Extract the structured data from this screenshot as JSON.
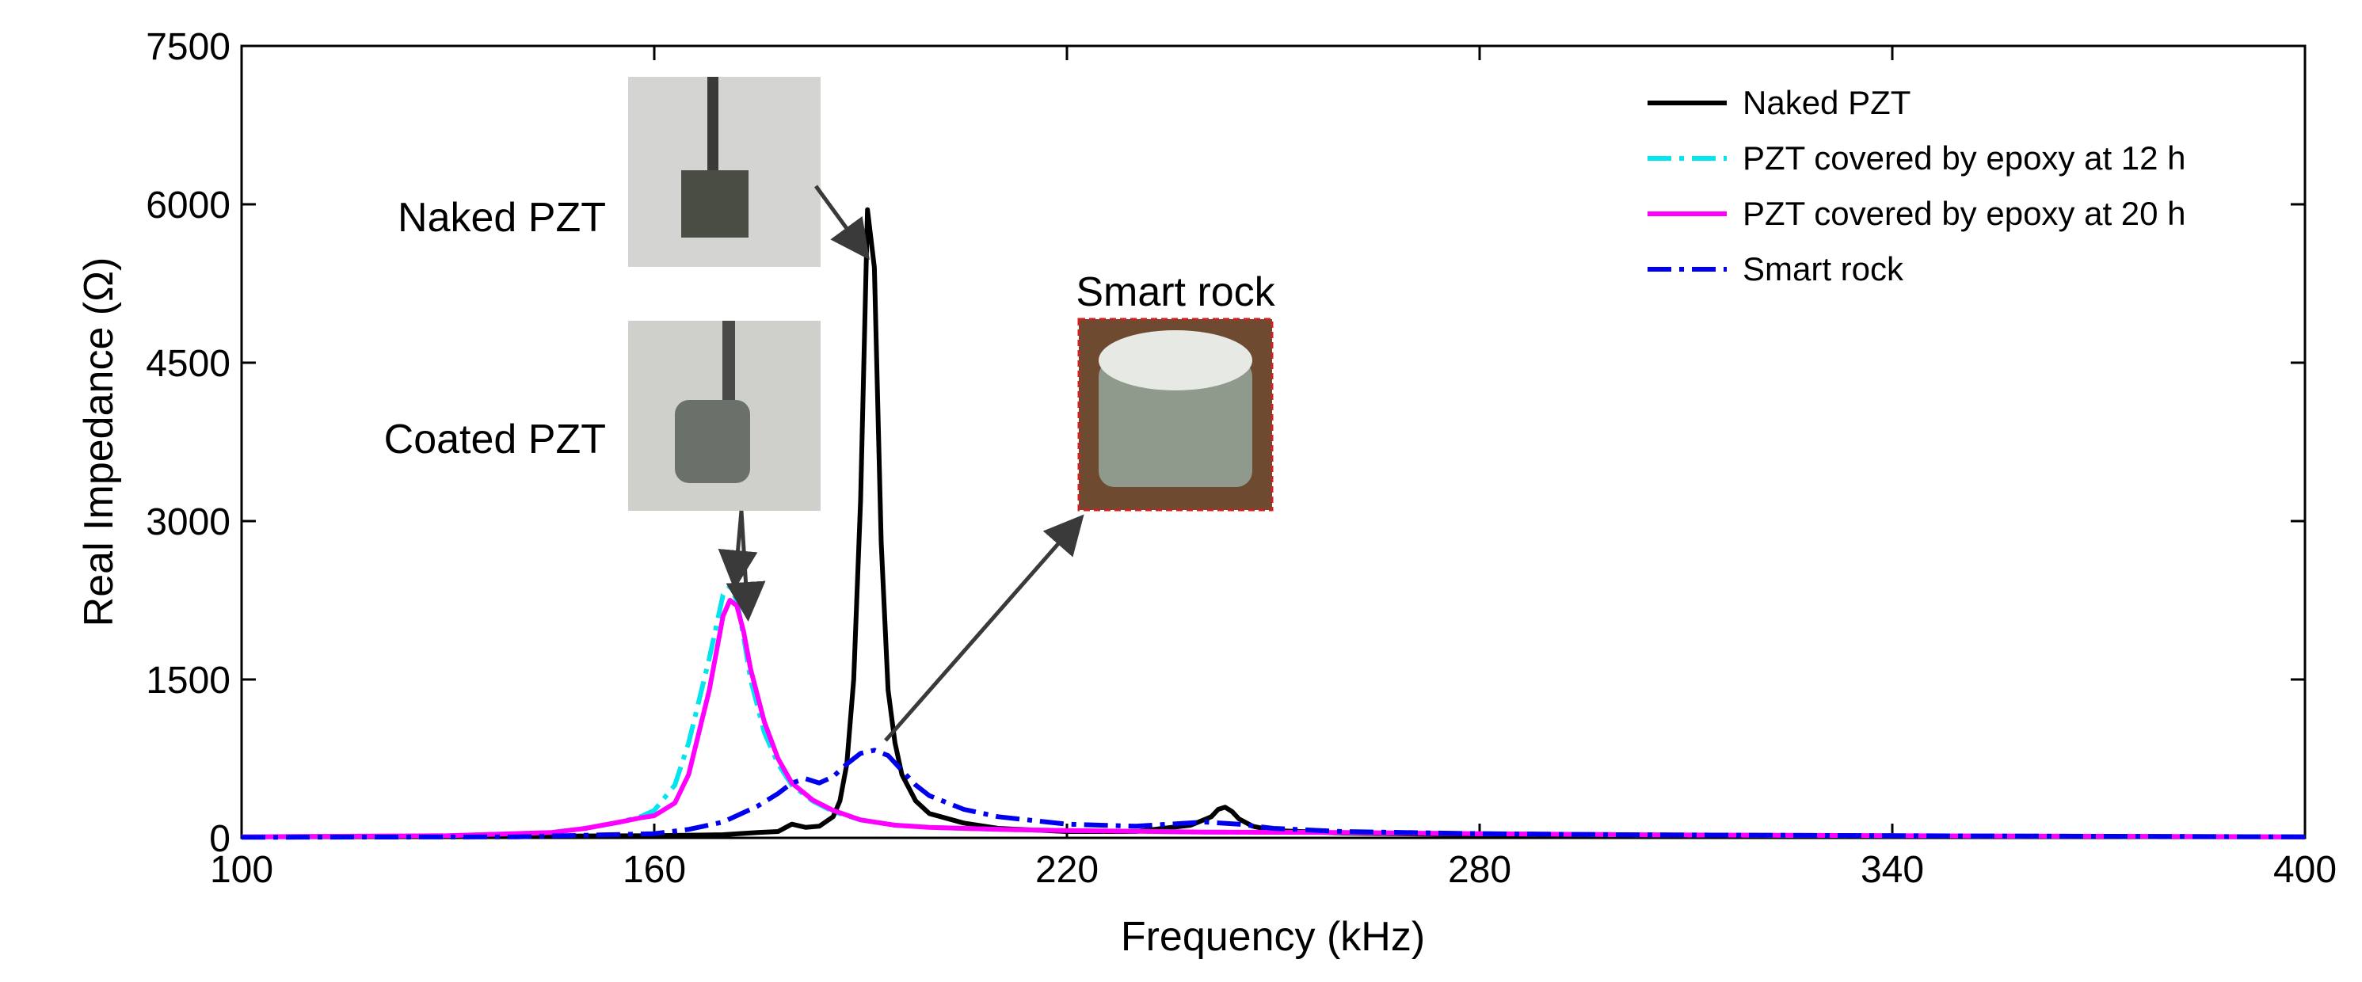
{
  "chart_data": {
    "type": "line",
    "title": "",
    "xlabel": "Frequency (kHz)",
    "ylabel": "Real Impedance (Ω)",
    "xlim": [
      100,
      400
    ],
    "ylim": [
      0,
      7500
    ],
    "xticks": [
      100,
      160,
      220,
      280,
      340,
      400
    ],
    "yticks": [
      0,
      1500,
      3000,
      4500,
      6000,
      7500
    ],
    "xtick_labels": [
      "100",
      "160",
      "220",
      "280",
      "340",
      "400"
    ],
    "ytick_labels": [
      "0",
      "1500",
      "3000",
      "4500",
      "6000",
      "7500"
    ],
    "grid": false,
    "legend_position": "top-right",
    "series": [
      {
        "name": "Naked PZT",
        "color": "#000000",
        "style": "solid",
        "x": [
          100,
          140,
          160,
          170,
          175,
          178,
          180,
          182,
          184,
          186,
          187,
          188,
          189,
          190,
          191,
          192,
          193,
          194,
          195,
          196,
          198,
          200,
          205,
          210,
          220,
          230,
          238,
          241,
          242,
          243,
          244,
          245,
          247,
          250,
          260,
          280,
          300,
          340,
          400
        ],
        "y": [
          10,
          15,
          20,
          30,
          50,
          60,
          130,
          100,
          110,
          200,
          350,
          700,
          1500,
          3200,
          5950,
          5400,
          2800,
          1400,
          900,
          600,
          350,
          230,
          140,
          90,
          60,
          60,
          120,
          200,
          270,
          290,
          250,
          180,
          110,
          70,
          45,
          30,
          20,
          12,
          10
        ]
      },
      {
        "name": "PZT covered by epoxy at 12 h",
        "color": "#00e5ee",
        "style": "dashdot",
        "x": [
          100,
          130,
          145,
          150,
          155,
          158,
          160,
          163,
          165,
          168,
          170,
          171,
          172,
          173,
          174,
          176,
          178,
          180,
          183,
          186,
          190,
          195,
          200,
          210,
          220,
          240,
          260,
          280,
          300,
          340,
          400
        ],
        "y": [
          10,
          20,
          50,
          90,
          150,
          200,
          260,
          500,
          900,
          1700,
          2300,
          2380,
          2250,
          1900,
          1500,
          1000,
          700,
          500,
          350,
          250,
          170,
          120,
          100,
          80,
          70,
          55,
          50,
          40,
          30,
          20,
          10
        ]
      },
      {
        "name": "PZT covered by epoxy at 20 h",
        "color": "#ff00ff",
        "style": "solid",
        "x": [
          100,
          130,
          145,
          150,
          155,
          158,
          160,
          163,
          165,
          168,
          170,
          171,
          172,
          173,
          174,
          176,
          178,
          180,
          183,
          186,
          190,
          195,
          200,
          210,
          220,
          240,
          260,
          280,
          300,
          340,
          400
        ],
        "y": [
          10,
          20,
          50,
          90,
          150,
          190,
          210,
          330,
          600,
          1400,
          2100,
          2250,
          2200,
          1950,
          1600,
          1100,
          750,
          520,
          360,
          260,
          170,
          120,
          100,
          80,
          70,
          55,
          50,
          40,
          30,
          20,
          10
        ]
      },
      {
        "name": "Smart rock",
        "color": "#0000ee",
        "style": "dashdot",
        "x": [
          100,
          140,
          160,
          165,
          170,
          175,
          178,
          180,
          182,
          184,
          186,
          188,
          190,
          192,
          194,
          196,
          198,
          200,
          205,
          210,
          220,
          230,
          240,
          245,
          250,
          260,
          280,
          300,
          340,
          400
        ],
        "y": [
          5,
          10,
          40,
          80,
          150,
          300,
          420,
          520,
          560,
          520,
          580,
          700,
          800,
          830,
          780,
          640,
          500,
          400,
          270,
          200,
          130,
          110,
          150,
          130,
          90,
          60,
          40,
          30,
          20,
          10
        ]
      }
    ],
    "annotations": [
      {
        "text": "Naked PZT",
        "target": [
          191,
          5950
        ]
      },
      {
        "text": "Coated PZT",
        "target": [
          172,
          2300
        ]
      },
      {
        "text": "Smart rock",
        "target": [
          192,
          830
        ]
      }
    ]
  }
}
